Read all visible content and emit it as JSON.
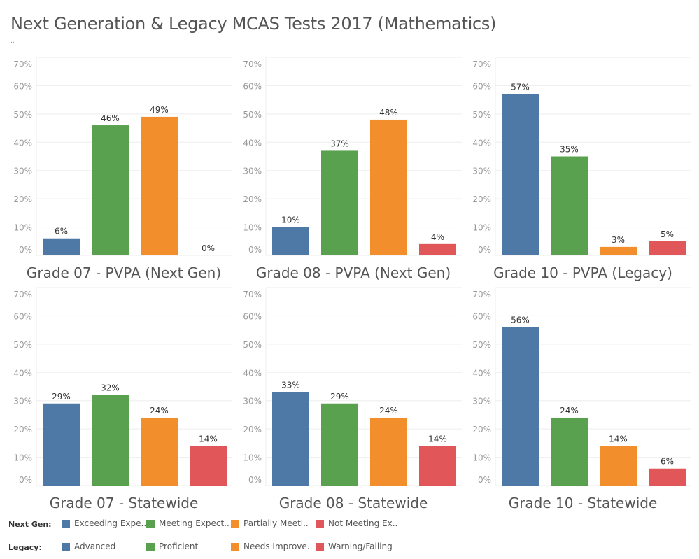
{
  "title": "Next Generation & Legacy MCAS Tests 2017 (Mathematics)",
  "subtitle": "..",
  "colors": [
    "#4e79a7",
    "#59a14f",
    "#f28e2b",
    "#e15759"
  ],
  "chart_data": [
    {
      "type": "bar",
      "title": "Grade 07 - PVPA (Next Gen)",
      "ylim": [
        0,
        70
      ],
      "yticks": [
        "0%",
        "10%",
        "20%",
        "30%",
        "40%",
        "50%",
        "60%",
        "70%"
      ],
      "values": [
        6,
        46,
        49,
        0
      ],
      "labels": [
        "6%",
        "46%",
        "49%",
        "0%"
      ],
      "grid": true
    },
    {
      "type": "bar",
      "title": "Grade 08 - PVPA (Next Gen)",
      "ylim": [
        0,
        70
      ],
      "yticks": [
        "0%",
        "10%",
        "20%",
        "30%",
        "40%",
        "50%",
        "60%",
        "70%"
      ],
      "values": [
        10,
        37,
        48,
        4
      ],
      "labels": [
        "10%",
        "37%",
        "48%",
        "4%"
      ],
      "grid": true
    },
    {
      "type": "bar",
      "title": "Grade 10 - PVPA (Legacy)",
      "ylim": [
        0,
        70
      ],
      "yticks": [
        "0%",
        "10%",
        "20%",
        "30%",
        "40%",
        "50%",
        "60%",
        "70%"
      ],
      "values": [
        57,
        35,
        3,
        5
      ],
      "labels": [
        "57%",
        "35%",
        "3%",
        "5%"
      ],
      "grid": true
    },
    {
      "type": "bar",
      "title": "Grade 07 - Statewide",
      "ylim": [
        0,
        70
      ],
      "yticks": [
        "0%",
        "10%",
        "20%",
        "30%",
        "40%",
        "50%",
        "60%",
        "70%"
      ],
      "values": [
        29,
        32,
        24,
        14
      ],
      "labels": [
        "29%",
        "32%",
        "24%",
        "14%"
      ],
      "grid": true
    },
    {
      "type": "bar",
      "title": "Grade 08 - Statewide",
      "ylim": [
        0,
        70
      ],
      "yticks": [
        "0%",
        "10%",
        "20%",
        "30%",
        "40%",
        "50%",
        "60%",
        "70%"
      ],
      "values": [
        33,
        29,
        24,
        14
      ],
      "labels": [
        "33%",
        "29%",
        "24%",
        "14%"
      ],
      "grid": true
    },
    {
      "type": "bar",
      "title": "Grade 10 - Statewide",
      "ylim": [
        0,
        70
      ],
      "yticks": [
        "0%",
        "10%",
        "20%",
        "30%",
        "40%",
        "50%",
        "60%",
        "70%"
      ],
      "values": [
        56,
        24,
        14,
        6
      ],
      "labels": [
        "56%",
        "24%",
        "14%",
        "6%"
      ],
      "grid": true
    }
  ],
  "legend": {
    "next_gen": {
      "label": "Next Gen:",
      "items": [
        "Exceeding Expe..",
        "Meeting Expect..",
        "Partially Meeti..",
        "Not Meeting Ex.."
      ]
    },
    "legacy": {
      "label": "Legacy:",
      "items": [
        "Advanced",
        "Proficient",
        "Needs Improve..",
        "Warning/Failing"
      ]
    }
  }
}
